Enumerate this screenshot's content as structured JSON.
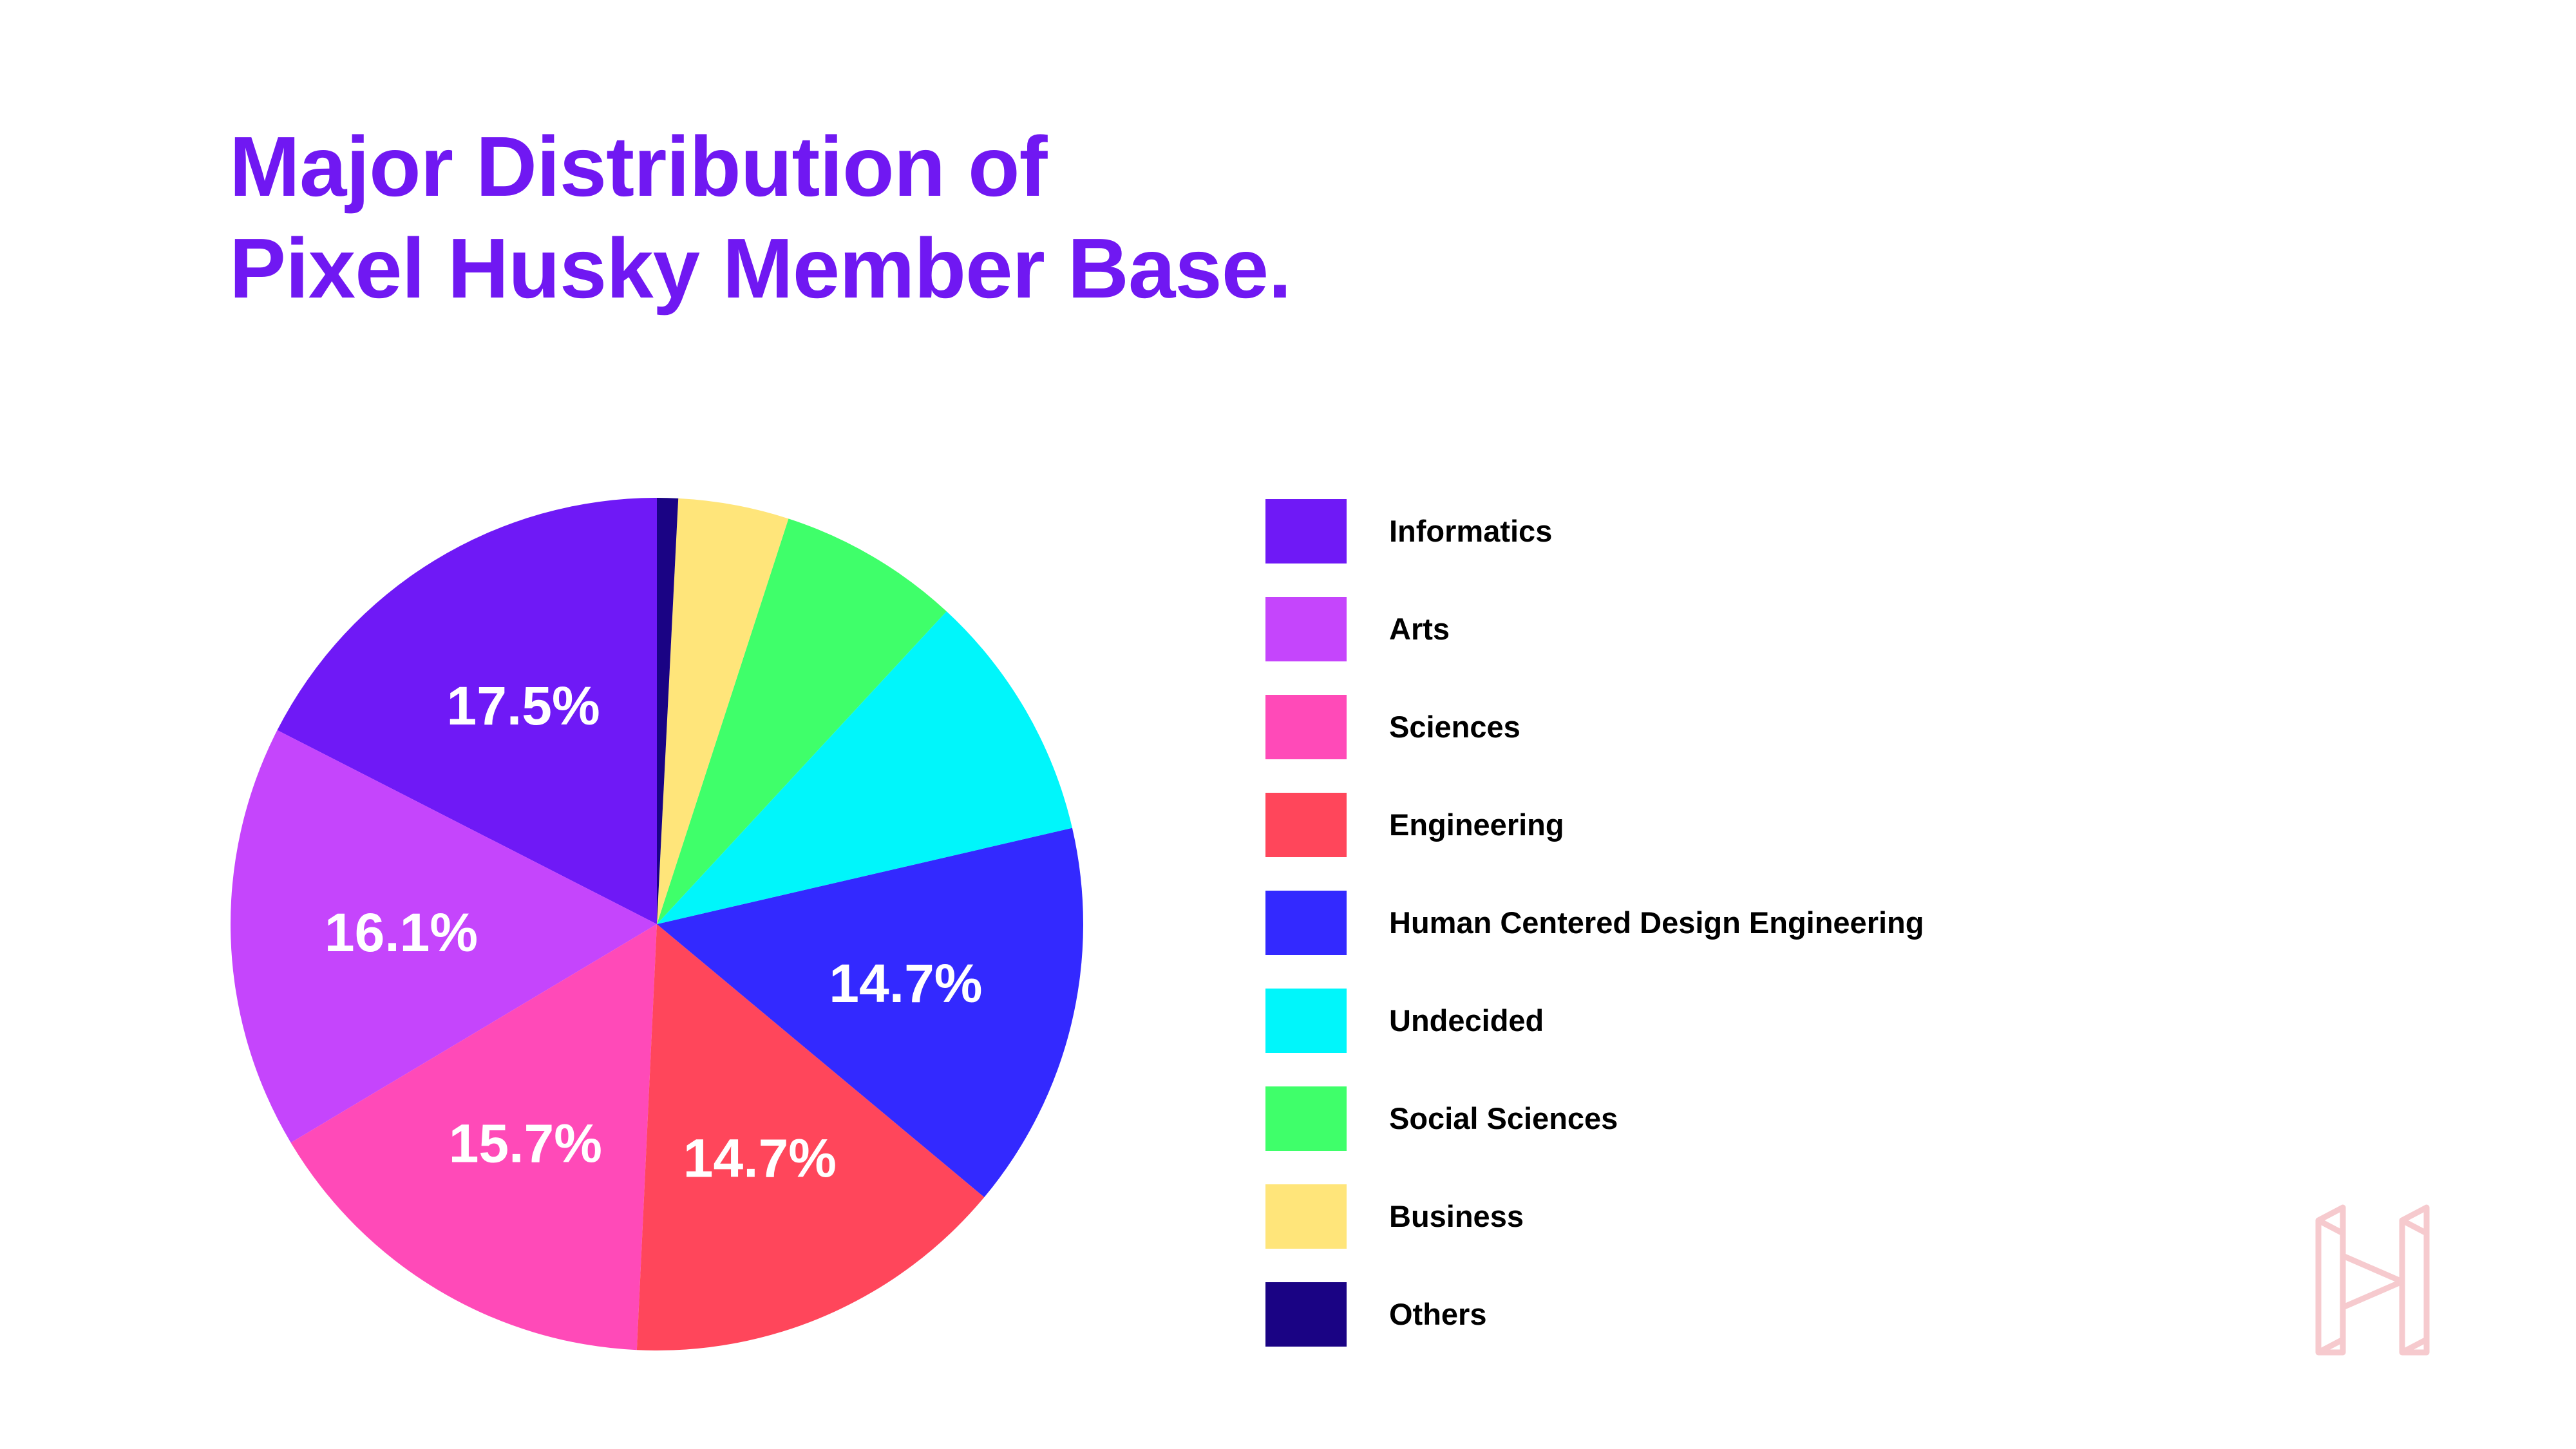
{
  "title_lines": [
    "Major Distribution of",
    "Pixel Husky Member Base."
  ],
  "colors": {
    "title": "#7018F2",
    "label_text": "#FFFFFF",
    "logo": "#F6CACE"
  },
  "logo_icon": "pixel-husky-logo-icon",
  "chart_data": {
    "type": "pie",
    "start": "top",
    "direction": "counterclockwise",
    "slices": [
      {
        "name": "Informatics",
        "value": 17.5,
        "label": "17.5%",
        "color": "#6F19F6"
      },
      {
        "name": "Arts",
        "value": 16.1,
        "label": "16.1%",
        "color": "#C545FC"
      },
      {
        "name": "Sciences",
        "value": 15.7,
        "label": "15.7%",
        "color": "#FF4AB8"
      },
      {
        "name": "Engineering",
        "value": 14.7,
        "label": "14.7%",
        "color": "#FF465B"
      },
      {
        "name": "Human Centered Design Engineering",
        "value": 14.7,
        "label": "14.7%",
        "color": "#3329FF"
      },
      {
        "name": "Undecided",
        "value": 9.5,
        "label": "",
        "color": "#00F6FB"
      },
      {
        "name": "Social Sciences",
        "value": 6.9,
        "label": "",
        "color": "#3FFF6A"
      },
      {
        "name": "Business",
        "value": 4.2,
        "label": "",
        "color": "#FFE57A"
      },
      {
        "name": "Others",
        "value": 0.8,
        "label": "",
        "color": "#1A0384"
      }
    ]
  }
}
